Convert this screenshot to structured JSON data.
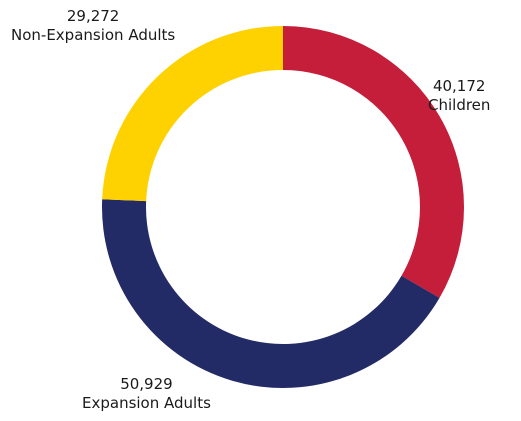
{
  "chart_data": {
    "type": "pie",
    "donut": true,
    "categories": [
      "Children",
      "Expansion Adults",
      "Non-Expansion Adults"
    ],
    "values": [
      40172,
      50929,
      29272
    ],
    "value_labels": [
      "40,172",
      "50,929",
      "29,272"
    ],
    "colors": [
      "#c41e3a",
      "#232b66",
      "#fed100"
    ],
    "start_angle_deg": 0,
    "direction": "clockwise"
  }
}
